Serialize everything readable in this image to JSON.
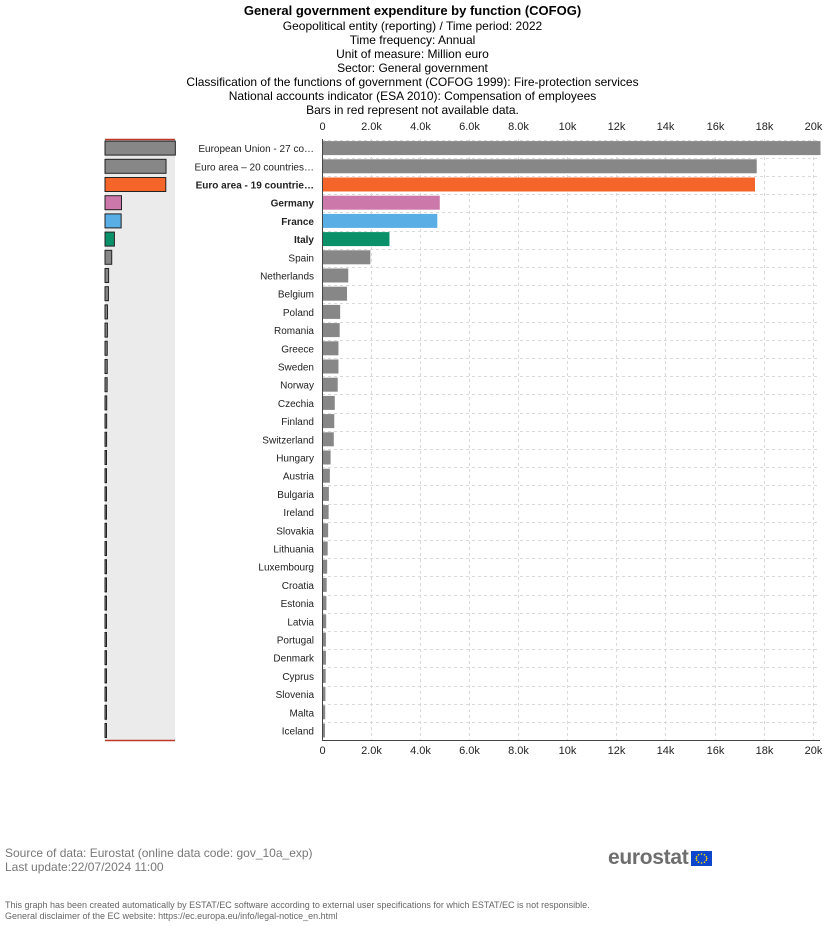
{
  "header": {
    "title": "General government expenditure by function (COFOG)",
    "subtitles": [
      "Geopolitical entity (reporting) / Time period: 2022",
      "Time frequency: Annual",
      "Unit of measure: Million euro",
      "Sector: General government",
      "Classification of the functions of government (COFOG 1999): Fire-protection services",
      "National accounts indicator (ESA 2010): Compensation of employees",
      "Bars in red represent not available data."
    ]
  },
  "chart_data": {
    "type": "bar",
    "orientation": "horizontal",
    "xlim": [
      0,
      20300
    ],
    "ticks": [
      0,
      2000,
      4000,
      6000,
      8000,
      10000,
      12000,
      14000,
      16000,
      18000,
      20000
    ],
    "tick_labels": [
      "0",
      "2.0k",
      "4.0k",
      "6.0k",
      "8.0k",
      "10k",
      "12k",
      "14k",
      "16k",
      "18k",
      "20k"
    ],
    "grid": true,
    "categories": [
      "European Union - 27 co…",
      "Euro area – 20 countries…",
      "Euro area - 19 countrie…",
      "Germany",
      "France",
      "Italy",
      "Spain",
      "Netherlands",
      "Belgium",
      "Poland",
      "Romania",
      "Greece",
      "Sweden",
      "Norway",
      "Czechia",
      "Finland",
      "Switzerland",
      "Hungary",
      "Austria",
      "Bulgaria",
      "Ireland",
      "Slovakia",
      "Lithuania",
      "Luxembourg",
      "Croatia",
      "Estonia",
      "Latvia",
      "Portugal",
      "Denmark",
      "Cyprus",
      "Slovenia",
      "Malta",
      "Iceland"
    ],
    "values": [
      20400,
      17700,
      17630,
      4780,
      4680,
      2730,
      1950,
      1050,
      1000,
      720,
      700,
      650,
      650,
      620,
      500,
      480,
      460,
      330,
      300,
      260,
      250,
      230,
      210,
      190,
      170,
      160,
      150,
      140,
      140,
      130,
      120,
      110,
      100
    ],
    "bold_categories": [
      "Euro area - 19 countrie…",
      "Germany",
      "France",
      "Italy"
    ],
    "colors": {
      "default": "#878787",
      "Euro area - 19 countrie…": "#f56428",
      "Germany": "#cd78aa",
      "France": "#5aaee6",
      "Italy": "#0a9169",
      "grid": "#d9d9d9",
      "overview_bg": "#ebebeb",
      "overview_na": "#c0392b"
    }
  },
  "footer": {
    "source": "Source of data: Eurostat (online data code: gov_10a_exp)",
    "updated": "Last update:22/07/2024 11:00",
    "disclaimer_1": "This graph has been created automatically by ESTAT/EC software according to external user specifications for which ESTAT/EC is not responsible.",
    "disclaimer_2": "General disclaimer of the EC website: https://ec.europa.eu/info/legal-notice_en.html",
    "logo_text": "eurostat"
  }
}
